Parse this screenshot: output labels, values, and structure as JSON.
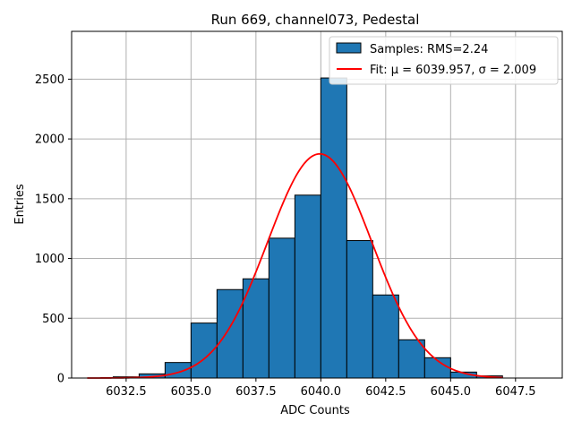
{
  "chart_data": {
    "type": "histogram",
    "title": "Run 669, channel073, Pedestal",
    "xlabel": "ADC Counts",
    "ylabel": "Entries",
    "xlim": [
      6030.4,
      6049.3
    ],
    "ylim": [
      0,
      2900
    ],
    "grid": true,
    "legend_position": "top-right",
    "x_ticks": [
      6032.5,
      6035.0,
      6037.5,
      6040.0,
      6042.5,
      6045.0,
      6047.5
    ],
    "x_tick_labels": [
      "6032.5",
      "6035.0",
      "6037.5",
      "6040.0",
      "6042.5",
      "6045.0",
      "6047.5"
    ],
    "y_ticks": [
      0,
      500,
      1000,
      1500,
      2000,
      2500
    ],
    "y_tick_labels": [
      "0",
      "500",
      "1000",
      "1500",
      "2000",
      "2500"
    ],
    "bins": {
      "edges": [
        6032,
        6033,
        6034,
        6035,
        6036,
        6037,
        6038,
        6039,
        6040,
        6041,
        6042,
        6043,
        6044,
        6045,
        6046,
        6047
      ],
      "counts": [
        10,
        35,
        130,
        460,
        740,
        830,
        1170,
        1530,
        2510,
        1150,
        695,
        320,
        170,
        50,
        18
      ],
      "color": "#1f77b4",
      "edge_color": "#000000"
    },
    "fit": {
      "mu": 6039.957,
      "sigma": 2.009,
      "amplitude": 1875,
      "x_range": [
        6031,
        6047
      ],
      "color": "#ff0000"
    },
    "legend": [
      {
        "label": "Samples: RMS=2.24",
        "kind": "patch",
        "color": "#1f77b4"
      },
      {
        "label": "Fit: μ = 6039.957, σ = 2.009",
        "kind": "line",
        "color": "#ff0000"
      }
    ]
  }
}
